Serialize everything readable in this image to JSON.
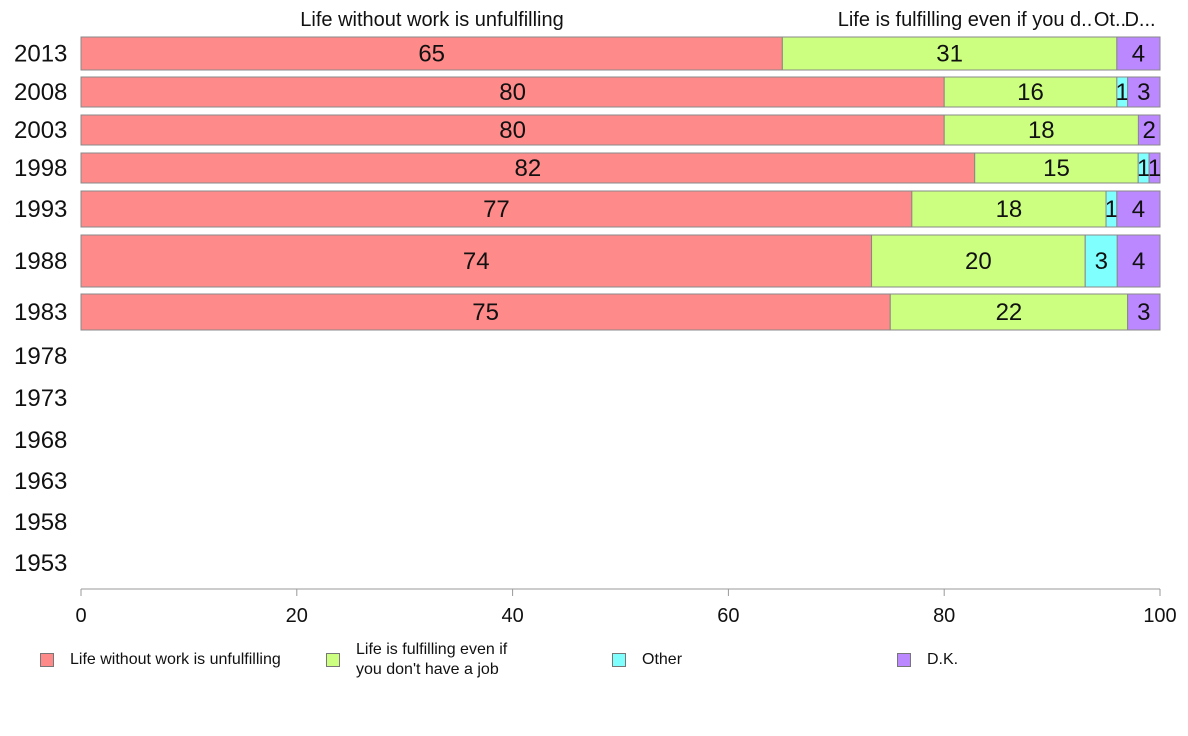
{
  "chart_data": {
    "type": "bar",
    "orientation": "horizontal",
    "stacked": true,
    "categories": [
      "2013",
      "2008",
      "2003",
      "1998",
      "1993",
      "1988",
      "1983",
      "1978",
      "1973",
      "1968",
      "1963",
      "1958",
      "1953"
    ],
    "series": [
      {
        "name": "Life without work is unfulfilling",
        "color": "#ff8a8a",
        "values": [
          65,
          80,
          80,
          82,
          77,
          74,
          75,
          null,
          null,
          null,
          null,
          null,
          null
        ]
      },
      {
        "name": "Life is fulfilling even if you don't have a job",
        "color": "#ccff80",
        "values": [
          31,
          16,
          18,
          15,
          18,
          20,
          22,
          null,
          null,
          null,
          null,
          null,
          null
        ]
      },
      {
        "name": "Other",
        "color": "#80ffff",
        "values": [
          null,
          1,
          null,
          1,
          1,
          3,
          null,
          null,
          null,
          null,
          null,
          null,
          null
        ]
      },
      {
        "name": "D.K.",
        "color": "#bb88ff",
        "values": [
          4,
          3,
          2,
          1,
          4,
          4,
          3,
          null,
          null,
          null,
          null,
          null,
          null
        ]
      }
    ],
    "top_labels": [
      "Life without work is unfulfilling",
      "Life is fulfilling even if you d..",
      "Ot..",
      "D..."
    ],
    "xlim": [
      0,
      100
    ],
    "xticks": [
      "0",
      "20",
      "40",
      "60",
      "80",
      "100"
    ],
    "legend_position": "bottom",
    "grid": false
  },
  "legend": {
    "items": [
      {
        "label": "Life without work is unfulfilling",
        "color": "#ff8a8a"
      },
      {
        "label": "Life is fulfilling even if\nyou don't have a job",
        "color": "#ccff80"
      },
      {
        "label": "Other",
        "color": "#80ffff"
      },
      {
        "label": "D.K.",
        "color": "#bb88ff"
      }
    ]
  }
}
